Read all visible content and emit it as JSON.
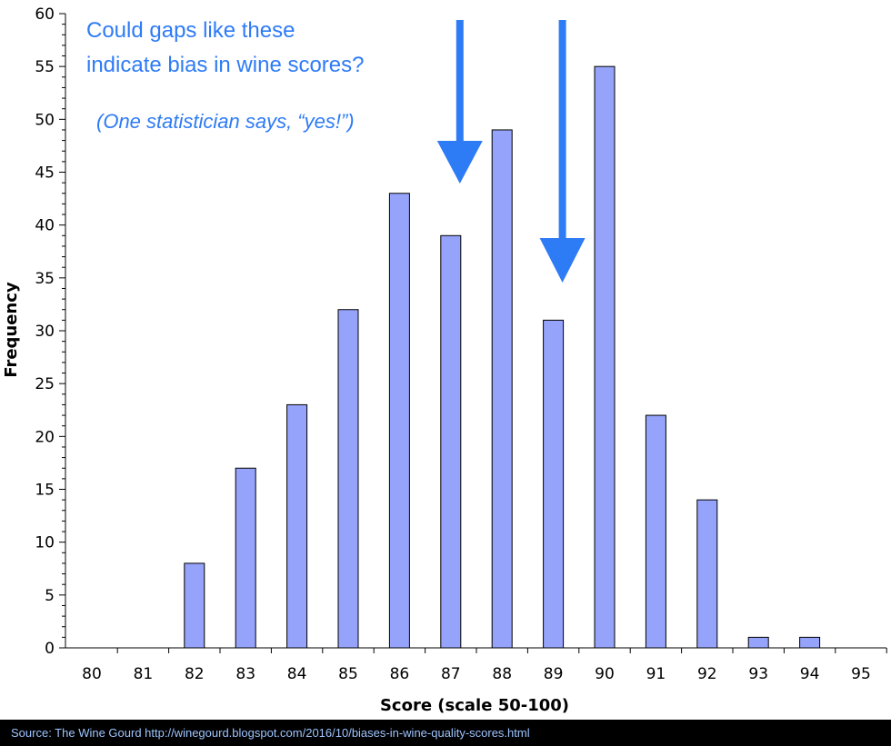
{
  "chart_data": {
    "type": "bar",
    "categories": [
      "80",
      "81",
      "82",
      "83",
      "84",
      "85",
      "86",
      "87",
      "88",
      "89",
      "90",
      "91",
      "92",
      "93",
      "94",
      "95"
    ],
    "values": [
      0,
      0,
      8,
      17,
      23,
      32,
      43,
      39,
      49,
      31,
      55,
      22,
      14,
      1,
      1,
      0
    ],
    "xlabel": "Score (scale 50-100)",
    "ylabel": "Frequency",
    "ylim": [
      0,
      60
    ],
    "yticks": [
      0,
      5,
      10,
      15,
      20,
      25,
      30,
      35,
      40,
      45,
      50,
      55,
      60
    ],
    "grid": false,
    "bar_color": "#95a3fb",
    "bar_edge_color": "#000000",
    "annotations": {
      "headline_line1": "Could gaps like these",
      "headline_line2": "indicate bias in wine scores?",
      "subnote": "(One statistician says, “yes!”)",
      "arrow_color": "#2e7bf6",
      "arrow_targets": [
        "87",
        "89"
      ]
    }
  },
  "footer": {
    "source": "Source: The Wine Gourd http://winegourd.blogspot.com/2016/10/biases-in-wine-quality-scores.html"
  }
}
